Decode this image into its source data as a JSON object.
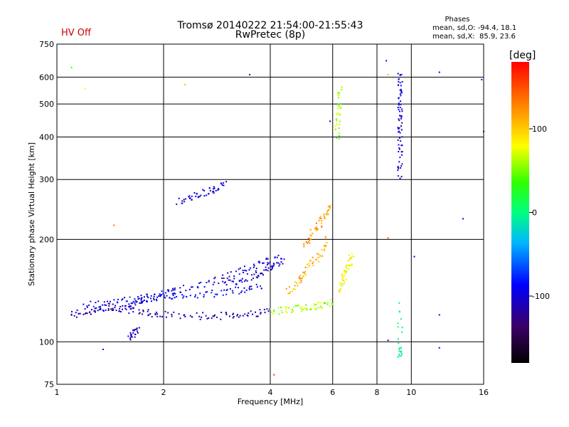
{
  "chart_data": {
    "type": "scatter",
    "title": "Tromsø 20140222 21:54:00-21:55:43",
    "subtitle": "RwPretec (8p)",
    "status": "HV Off",
    "phases": {
      "header": "Phases",
      "line_o": "mean, sd,O: -94.4, 18.1",
      "line_x": "mean, sd,X:  85.9, 23.6"
    },
    "xlabel": "Frequency [MHz]",
    "ylabel": "Stationary phase Virtual Height [km]",
    "x_scale": "log",
    "y_scale": "log",
    "xlim": [
      1,
      16
    ],
    "ylim": [
      75,
      750
    ],
    "x_ticks": [
      1,
      2,
      4,
      6,
      8,
      10,
      16
    ],
    "y_ticks": [
      75,
      100,
      200,
      300,
      400,
      500,
      600,
      750
    ],
    "grid_x": [
      2,
      4,
      6,
      8,
      10
    ],
    "grid_y": [
      100,
      200,
      300,
      400,
      500,
      600
    ],
    "grid": true,
    "colorbar": {
      "label": "[deg]",
      "ticks": [
        "100",
        "0",
        "-100"
      ],
      "tick_values": [
        100,
        0,
        -100
      ],
      "range": [
        -180,
        180
      ],
      "placement": "right"
    },
    "traces": [
      {
        "x": [
          1.1,
          1.2,
          1.3,
          1.4,
          1.5,
          1.6,
          1.8,
          2.0,
          2.4,
          2.8,
          3.2,
          3.6,
          4.0
        ],
        "y": [
          120,
          122,
          124,
          127,
          126,
          124,
          122,
          120,
          119,
          119,
          120,
          121,
          124
        ],
        "phase": -110
      },
      {
        "x": [
          1.2,
          1.4,
          1.6,
          1.8,
          2.0,
          2.2,
          2.6,
          3.0,
          3.4,
          3.8
        ],
        "y": [
          127,
          131,
          133,
          134,
          136,
          137,
          138,
          140,
          143,
          147
        ],
        "phase": -90
      },
      {
        "x": [
          1.6,
          1.7,
          1.8,
          2.0,
          2.2,
          2.6,
          3.0,
          3.4,
          3.8,
          4.2
        ],
        "y": [
          126,
          130,
          135,
          138,
          142,
          147,
          155,
          163,
          170,
          178
        ],
        "phase": -100
      },
      {
        "x": [
          3.0,
          3.3,
          3.6,
          3.9,
          4.1,
          4.4
        ],
        "y": [
          148,
          152,
          157,
          162,
          168,
          175
        ],
        "phase": -100
      },
      {
        "x": [
          2.2,
          2.4,
          2.6,
          2.8,
          3.0
        ],
        "y": [
          258,
          265,
          275,
          283,
          290
        ],
        "phase": -100
      },
      {
        "x": [
          1.6,
          1.65,
          1.7
        ],
        "y": [
          102,
          106,
          110
        ],
        "phase": -110
      },
      {
        "x": [
          4.0,
          4.4,
          4.8,
          5.2,
          5.6,
          6.0
        ],
        "y": [
          123,
          124,
          125,
          127,
          128,
          131
        ],
        "phase": 60
      },
      {
        "x": [
          4.5,
          4.8,
          5.0,
          5.3,
          5.6,
          5.8
        ],
        "y": [
          140,
          150,
          160,
          172,
          185,
          200
        ],
        "phase": 110
      },
      {
        "x": [
          5.0,
          5.2,
          5.5,
          5.7,
          5.9
        ],
        "y": [
          190,
          205,
          220,
          235,
          250
        ],
        "phase": 120
      },
      {
        "x": [
          6.3,
          6.4,
          6.5,
          6.7,
          6.8
        ],
        "y": [
          140,
          150,
          160,
          170,
          180
        ],
        "phase": 80
      },
      {
        "x": [
          9.3,
          9.3,
          9.3,
          9.3,
          9.3,
          9.3,
          9.3
        ],
        "y": [
          300,
          350,
          400,
          450,
          500,
          560,
          620
        ],
        "phase": -100
      },
      {
        "x": [
          6.2,
          6.2,
          6.3,
          6.3
        ],
        "y": [
          400,
          450,
          500,
          560
        ],
        "phase": 60
      },
      {
        "x": [
          9.3,
          9.3,
          9.3
        ],
        "y": [
          90,
          95,
          130
        ],
        "phase": 0
      }
    ],
    "points": [
      {
        "x": 1.1,
        "y": 640,
        "phase": 30
      },
      {
        "x": 1.2,
        "y": 555,
        "phase": 80
      },
      {
        "x": 1.35,
        "y": 95,
        "phase": -110
      },
      {
        "x": 1.45,
        "y": 220,
        "phase": 140
      },
      {
        "x": 2.3,
        "y": 570,
        "phase": 110
      },
      {
        "x": 3.5,
        "y": 610,
        "phase": -110
      },
      {
        "x": 4.1,
        "y": 80,
        "phase": 160
      },
      {
        "x": 5.9,
        "y": 445,
        "phase": -100
      },
      {
        "x": 8.5,
        "y": 670,
        "phase": -110
      },
      {
        "x": 8.6,
        "y": 610,
        "phase": 110
      },
      {
        "x": 8.6,
        "y": 202,
        "phase": 150
      },
      {
        "x": 8.6,
        "y": 101,
        "phase": -130
      },
      {
        "x": 8.0,
        "y": 104,
        "phase": 140
      },
      {
        "x": 10.2,
        "y": 178,
        "phase": -110
      },
      {
        "x": 12.0,
        "y": 620,
        "phase": -100
      },
      {
        "x": 12.0,
        "y": 120,
        "phase": -100
      },
      {
        "x": 12.0,
        "y": 96,
        "phase": -90
      },
      {
        "x": 14.0,
        "y": 230,
        "phase": -100
      },
      {
        "x": 16.0,
        "y": 415,
        "phase": -110
      },
      {
        "x": 15.8,
        "y": 590,
        "phase": -110
      }
    ]
  }
}
